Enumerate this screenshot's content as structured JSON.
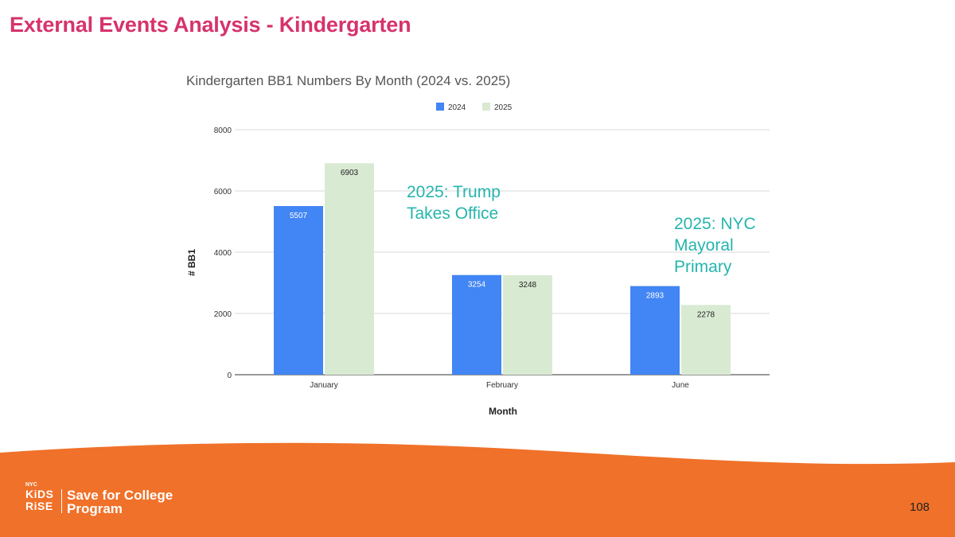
{
  "slide": {
    "title": "External Events Analysis - Kindergarten",
    "page_number": "108"
  },
  "annotations": {
    "trump": "2025: Trump\nTakes Office",
    "nyc": "2025: NYC\nMayoral\nPrimary"
  },
  "logo": {
    "nyc": "NYC",
    "kids": "KiDS",
    "rise": "RiSE",
    "program_line1": "Save for College",
    "program_line2": "Program"
  },
  "colors": {
    "title": "#d6336c",
    "annotation": "#26b5ad",
    "footer": "#f07129",
    "series_2024": "#4285f4",
    "series_2025": "#d9ead3"
  },
  "chart_data": {
    "type": "bar",
    "title": "Kindergarten BB1 Numbers By Month (2024 vs. 2025)",
    "xlabel": "Month",
    "ylabel": "# BB1",
    "categories": [
      "January",
      "February",
      "June"
    ],
    "series": [
      {
        "name": "2024",
        "values": [
          5507,
          3254,
          2893
        ],
        "color": "#4285f4"
      },
      {
        "name": "2025",
        "values": [
          6903,
          3248,
          2278
        ],
        "color": "#d9ead3"
      }
    ],
    "ylim": [
      0,
      8000
    ],
    "yticks": [
      0,
      2000,
      4000,
      6000,
      8000
    ],
    "grid": true,
    "legend": "top-center"
  }
}
